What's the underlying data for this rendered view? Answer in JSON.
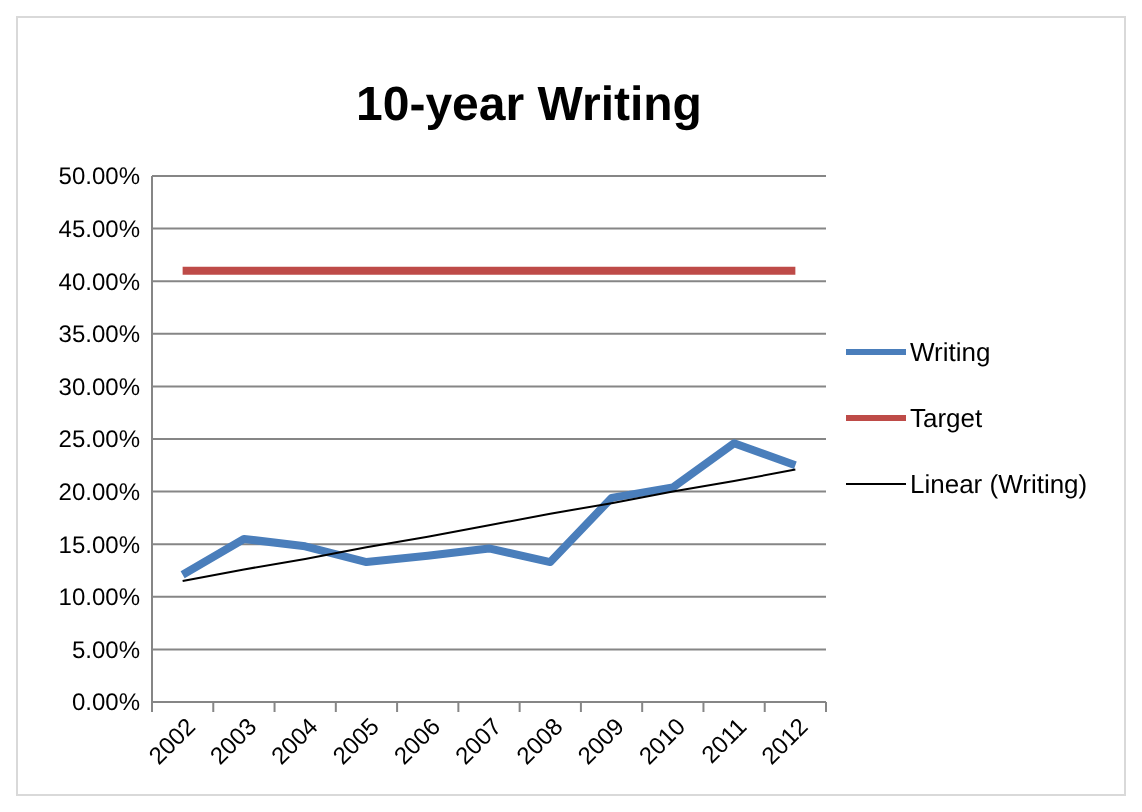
{
  "chart_data": {
    "type": "line",
    "title": "10-year Writing",
    "categories": [
      "2002",
      "2003",
      "2004",
      "2005",
      "2006",
      "2007",
      "2008",
      "2009",
      "2010",
      "2011",
      "2012"
    ],
    "series": [
      {
        "name": "Writing",
        "color": "#4a7ebb",
        "values": [
          12.1,
          15.5,
          14.8,
          13.3,
          13.9,
          14.6,
          13.3,
          19.4,
          20.4,
          24.6,
          22.5
        ]
      },
      {
        "name": "Target",
        "color": "#be4b48",
        "values": [
          41,
          41,
          41,
          41,
          41,
          41,
          41,
          41,
          41,
          41,
          41
        ]
      },
      {
        "name": "Linear (Writing)",
        "color": "#000000",
        "values": [
          11.5,
          12.6,
          13.6,
          14.7,
          15.7,
          16.8,
          17.9,
          18.9,
          20.0,
          21.0,
          22.1
        ]
      }
    ],
    "ylim": [
      0,
      50
    ],
    "yticks": [
      {
        "value": 0,
        "label": "0.00%"
      },
      {
        "value": 5,
        "label": "5.00%"
      },
      {
        "value": 10,
        "label": "10.00%"
      },
      {
        "value": 15,
        "label": "15.00%"
      },
      {
        "value": 20,
        "label": "20.00%"
      },
      {
        "value": 25,
        "label": "25.00%"
      },
      {
        "value": 30,
        "label": "30.00%"
      },
      {
        "value": 35,
        "label": "35.00%"
      },
      {
        "value": 40,
        "label": "40.00%"
      },
      {
        "value": 45,
        "label": "45.00%"
      },
      {
        "value": 50,
        "label": "50.00%"
      }
    ],
    "grid": "y",
    "legend": "right",
    "marker": "none"
  }
}
